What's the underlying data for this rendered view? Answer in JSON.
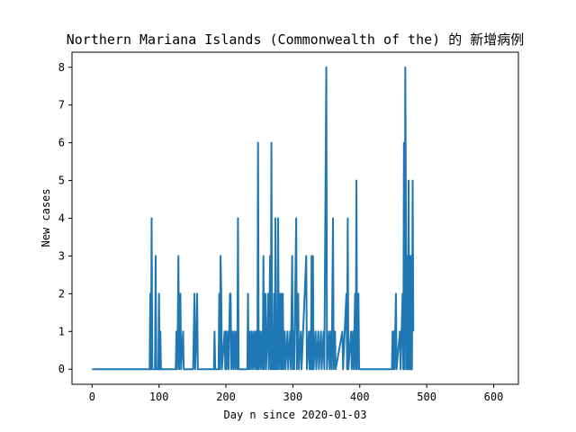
{
  "chart_data": {
    "type": "line",
    "title": "Northern Mariana Islands (Commonwealth of the) 的 新增病例",
    "xlabel": "Day n since 2020-01-03",
    "ylabel": "New cases",
    "xlim": [
      -30,
      637
    ],
    "ylim": [
      -0.4,
      8.4
    ],
    "xticks": [
      0,
      100,
      200,
      300,
      400,
      500,
      600
    ],
    "yticks": [
      0,
      1,
      2,
      3,
      4,
      5,
      6,
      7,
      8
    ],
    "grid": false,
    "series": [
      {
        "color": "#1f77b4",
        "points": [
          [
            0,
            0
          ],
          [
            86,
            0
          ],
          [
            87,
            2
          ],
          [
            88,
            0
          ],
          [
            89,
            4
          ],
          [
            90,
            0
          ],
          [
            94,
            0
          ],
          [
            95,
            3
          ],
          [
            96,
            0
          ],
          [
            99,
            0
          ],
          [
            100,
            2
          ],
          [
            101,
            0
          ],
          [
            102,
            1
          ],
          [
            103,
            0
          ],
          [
            125,
            0
          ],
          [
            126,
            1
          ],
          [
            127,
            0
          ],
          [
            128,
            1
          ],
          [
            129,
            3
          ],
          [
            130,
            0
          ],
          [
            132,
            2
          ],
          [
            133,
            0
          ],
          [
            136,
            1
          ],
          [
            137,
            0
          ],
          [
            151,
            0
          ],
          [
            152,
            1
          ],
          [
            153,
            2
          ],
          [
            154,
            0
          ],
          [
            156,
            1
          ],
          [
            157,
            2
          ],
          [
            158,
            0
          ],
          [
            182,
            0
          ],
          [
            183,
            1
          ],
          [
            184,
            0
          ],
          [
            189,
            0
          ],
          [
            190,
            2
          ],
          [
            191,
            0
          ],
          [
            192,
            3
          ],
          [
            193,
            2
          ],
          [
            194,
            0
          ],
          [
            198,
            1
          ],
          [
            199,
            0
          ],
          [
            200,
            1
          ],
          [
            201,
            0
          ],
          [
            203,
            1
          ],
          [
            204,
            0
          ],
          [
            206,
            2
          ],
          [
            207,
            2
          ],
          [
            208,
            0
          ],
          [
            210,
            1
          ],
          [
            211,
            0
          ],
          [
            213,
            1
          ],
          [
            214,
            0
          ],
          [
            216,
            1
          ],
          [
            217,
            0
          ],
          [
            218,
            4
          ],
          [
            219,
            0
          ],
          [
            232,
            0
          ],
          [
            233,
            2
          ],
          [
            234,
            0
          ],
          [
            235,
            1
          ],
          [
            236,
            0
          ],
          [
            238,
            1
          ],
          [
            239,
            0
          ],
          [
            241,
            1
          ],
          [
            242,
            0
          ],
          [
            244,
            1
          ],
          [
            245,
            0
          ],
          [
            246,
            1
          ],
          [
            247,
            0
          ],
          [
            248,
            6
          ],
          [
            249,
            0
          ],
          [
            251,
            1
          ],
          [
            252,
            0
          ],
          [
            254,
            1
          ],
          [
            255,
            0
          ],
          [
            256,
            3
          ],
          [
            257,
            0
          ],
          [
            259,
            2
          ],
          [
            260,
            0
          ],
          [
            262,
            1
          ],
          [
            263,
            2
          ],
          [
            264,
            0
          ],
          [
            266,
            3
          ],
          [
            267,
            0
          ],
          [
            268,
            6
          ],
          [
            269,
            0
          ],
          [
            270,
            1
          ],
          [
            271,
            0
          ],
          [
            272,
            2
          ],
          [
            273,
            0
          ],
          [
            274,
            4
          ],
          [
            275,
            0
          ],
          [
            276,
            1
          ],
          [
            277,
            0
          ],
          [
            278,
            4
          ],
          [
            279,
            0
          ],
          [
            281,
            2
          ],
          [
            282,
            0
          ],
          [
            283,
            2
          ],
          [
            284,
            0
          ],
          [
            285,
            2
          ],
          [
            286,
            0
          ],
          [
            288,
            1
          ],
          [
            289,
            0
          ],
          [
            292,
            1
          ],
          [
            293,
            0
          ],
          [
            296,
            1
          ],
          [
            297,
            0
          ],
          [
            299,
            3
          ],
          [
            300,
            0
          ],
          [
            301,
            1
          ],
          [
            302,
            0
          ],
          [
            305,
            4
          ],
          [
            306,
            0
          ],
          [
            308,
            2
          ],
          [
            309,
            0
          ],
          [
            312,
            1
          ],
          [
            313,
            0
          ],
          [
            320,
            3
          ],
          [
            321,
            0
          ],
          [
            324,
            1
          ],
          [
            325,
            0
          ],
          [
            326,
            1
          ],
          [
            327,
            0
          ],
          [
            328,
            3
          ],
          [
            329,
            0
          ],
          [
            330,
            3
          ],
          [
            331,
            0
          ],
          [
            334,
            1
          ],
          [
            335,
            0
          ],
          [
            338,
            1
          ],
          [
            339,
            0
          ],
          [
            342,
            1
          ],
          [
            343,
            0
          ],
          [
            346,
            1
          ],
          [
            347,
            0
          ],
          [
            350,
            8
          ],
          [
            351,
            0
          ],
          [
            354,
            1
          ],
          [
            355,
            0
          ],
          [
            357,
            1
          ],
          [
            358,
            0
          ],
          [
            360,
            4
          ],
          [
            361,
            0
          ],
          [
            363,
            1
          ],
          [
            364,
            0
          ],
          [
            374,
            1
          ],
          [
            375,
            0
          ],
          [
            380,
            2
          ],
          [
            381,
            0
          ],
          [
            382,
            4
          ],
          [
            383,
            0
          ],
          [
            387,
            1
          ],
          [
            388,
            0
          ],
          [
            390,
            1
          ],
          [
            391,
            0
          ],
          [
            393,
            2
          ],
          [
            394,
            0
          ],
          [
            395,
            5
          ],
          [
            396,
            0
          ],
          [
            398,
            2
          ],
          [
            399,
            0
          ],
          [
            448,
            0
          ],
          [
            449,
            1
          ],
          [
            450,
            0
          ],
          [
            451,
            1
          ],
          [
            452,
            0
          ],
          [
            454,
            2
          ],
          [
            455,
            0
          ],
          [
            460,
            1
          ],
          [
            461,
            0
          ],
          [
            464,
            2
          ],
          [
            465,
            0
          ],
          [
            466,
            6
          ],
          [
            467,
            0
          ],
          [
            468,
            8
          ],
          [
            469,
            4
          ],
          [
            470,
            0
          ],
          [
            471,
            3
          ],
          [
            472,
            0
          ],
          [
            473,
            5
          ],
          [
            474,
            0
          ],
          [
            475,
            3
          ],
          [
            476,
            0
          ],
          [
            477,
            3
          ],
          [
            478,
            0
          ],
          [
            479,
            5
          ],
          [
            480,
            1
          ]
        ]
      }
    ]
  }
}
